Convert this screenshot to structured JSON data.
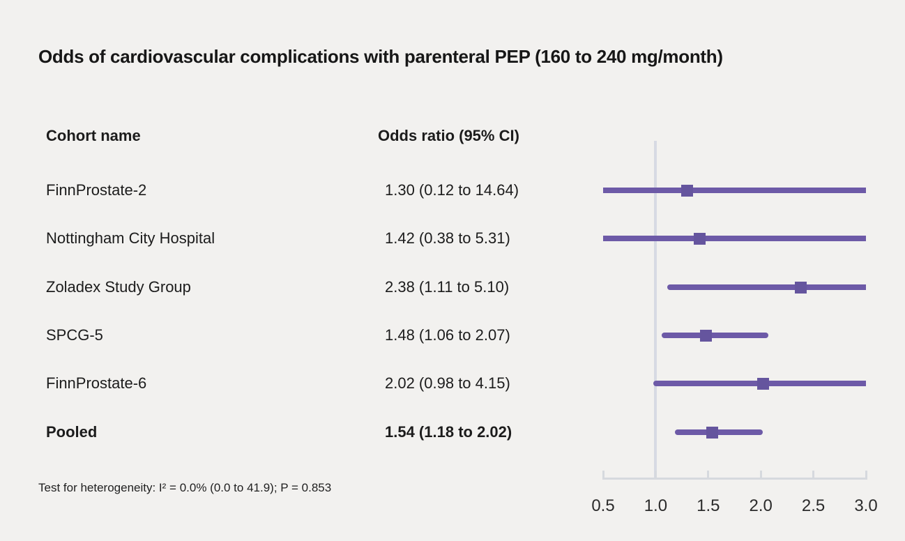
{
  "title": "Odds of cardiovascular complications with parenteral PEP (160 to 240 mg/month)",
  "columns": {
    "cohort": "Cohort name",
    "odds": "Odds ratio (95% CI)"
  },
  "footnote": "Test for heterogeneity: I² = 0.0% (0.0 to 41.9); P = 0.853",
  "chart_data": {
    "type": "forest",
    "title": "Odds of cardiovascular complications with parenteral PEP (160 to 240 mg/month)",
    "rows": [
      {
        "label": "FinnProstate-2",
        "or_text": "1.30 (0.12 to 14.64)",
        "or": 1.3,
        "ci_low": 0.12,
        "ci_high": 14.64,
        "pooled": false
      },
      {
        "label": "Nottingham City Hospital",
        "or_text": "1.42 (0.38 to 5.31)",
        "or": 1.42,
        "ci_low": 0.38,
        "ci_high": 5.31,
        "pooled": false
      },
      {
        "label": "Zoladex Study Group",
        "or_text": "2.38 (1.11 to 5.10)",
        "or": 2.38,
        "ci_low": 1.11,
        "ci_high": 5.1,
        "pooled": false
      },
      {
        "label": "SPCG-5",
        "or_text": "1.48 (1.06 to 2.07)",
        "or": 1.48,
        "ci_low": 1.06,
        "ci_high": 2.07,
        "pooled": false
      },
      {
        "label": "FinnProstate-6",
        "or_text": "2.02 (0.98 to 4.15)",
        "or": 2.02,
        "ci_low": 0.98,
        "ci_high": 4.15,
        "pooled": false
      },
      {
        "label": "Pooled",
        "or_text": "1.54 (1.18 to 2.02)",
        "or": 1.54,
        "ci_low": 1.18,
        "ci_high": 2.02,
        "pooled": true
      }
    ],
    "axis": {
      "min": 0.5,
      "max": 3.0,
      "ticks": [
        0.5,
        1.0,
        1.5,
        2.0,
        2.5,
        3.0
      ],
      "tick_labels": [
        "0.5",
        "1.0",
        "1.5",
        "2.0",
        "2.5",
        "3.0"
      ],
      "reference_line": 1.0
    },
    "colors": {
      "ci_line": "#6d5aa7",
      "marker": "#65559e",
      "reference_line": "#d7dae3",
      "axis": "#d6d9de"
    },
    "layout": {
      "grid": false,
      "legend": "none",
      "scale": "linear",
      "ci_clipped_at_range": true
    }
  }
}
